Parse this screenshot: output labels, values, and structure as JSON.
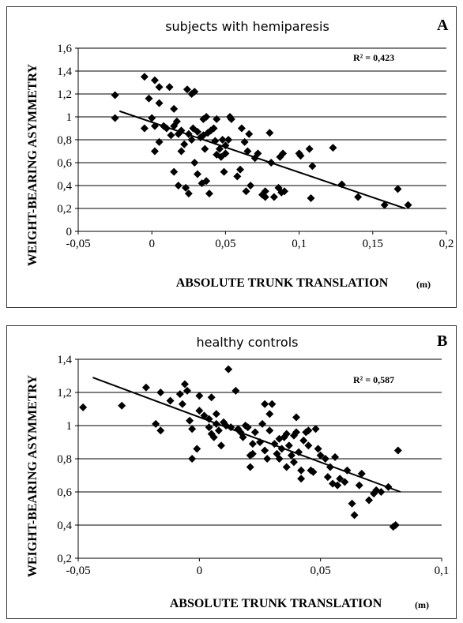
{
  "chart_data": [
    {
      "type": "scatter",
      "panel": "A",
      "title": "subjects with hemiparesis",
      "xlabel": "ABSOLUTE TRUNK TRANSLATION",
      "xunit": "(m)",
      "ylabel": "WEIGHT-BEARING ASYMMETRY",
      "xlim": [
        -0.05,
        0.2
      ],
      "ylim": [
        0,
        1.6
      ],
      "xticks": [
        "-0,05",
        "0",
        "0,05",
        "0,1",
        "0,15",
        "0,2"
      ],
      "yticks": [
        "0",
        "0,2",
        "0,4",
        "0,6",
        "0,8",
        "1",
        "1,2",
        "1,4",
        "1,6"
      ],
      "r2_label": "R² = 0,423",
      "grid": "horizontal",
      "trendline": {
        "x": [
          -0.022,
          0.172
        ],
        "y": [
          1.05,
          0.2
        ]
      },
      "points": [
        [
          -0.025,
          1.19
        ],
        [
          -0.025,
          0.99
        ],
        [
          -0.005,
          1.35
        ],
        [
          -0.005,
          0.9
        ],
        [
          -0.002,
          1.16
        ],
        [
          0.0,
          0.99
        ],
        [
          0.002,
          1.32
        ],
        [
          0.002,
          0.92
        ],
        [
          0.002,
          0.7
        ],
        [
          0.005,
          1.26
        ],
        [
          0.005,
          1.12
        ],
        [
          0.005,
          0.78
        ],
        [
          0.008,
          0.92
        ],
        [
          0.01,
          0.9
        ],
        [
          0.012,
          1.26
        ],
        [
          0.013,
          0.84
        ],
        [
          0.015,
          1.07
        ],
        [
          0.015,
          0.92
        ],
        [
          0.015,
          0.52
        ],
        [
          0.017,
          0.96
        ],
        [
          0.018,
          0.85
        ],
        [
          0.018,
          0.4
        ],
        [
          0.02,
          0.88
        ],
        [
          0.02,
          0.7
        ],
        [
          0.022,
          0.76
        ],
        [
          0.023,
          0.38
        ],
        [
          0.024,
          1.24
        ],
        [
          0.025,
          0.85
        ],
        [
          0.025,
          0.33
        ],
        [
          0.027,
          0.8
        ],
        [
          0.027,
          1.2
        ],
        [
          0.029,
          1.22
        ],
        [
          0.028,
          0.9
        ],
        [
          0.029,
          0.6
        ],
        [
          0.031,
          0.87
        ],
        [
          0.031,
          0.5
        ],
        [
          0.033,
          0.82
        ],
        [
          0.034,
          0.42
        ],
        [
          0.035,
          0.98
        ],
        [
          0.035,
          0.84
        ],
        [
          0.036,
          0.72
        ],
        [
          0.037,
          1.0
        ],
        [
          0.037,
          0.44
        ],
        [
          0.038,
          0.86
        ],
        [
          0.039,
          0.33
        ],
        [
          0.04,
          0.88
        ],
        [
          0.042,
          0.9
        ],
        [
          0.043,
          0.79
        ],
        [
          0.044,
          0.98
        ],
        [
          0.044,
          0.67
        ],
        [
          0.046,
          0.72
        ],
        [
          0.047,
          0.65
        ],
        [
          0.048,
          0.8
        ],
        [
          0.049,
          0.52
        ],
        [
          0.05,
          0.75
        ],
        [
          0.05,
          0.68
        ],
        [
          0.052,
          0.8
        ],
        [
          0.053,
          1.0
        ],
        [
          0.054,
          0.98
        ],
        [
          0.058,
          0.48
        ],
        [
          0.06,
          0.54
        ],
        [
          0.061,
          0.9
        ],
        [
          0.063,
          0.78
        ],
        [
          0.064,
          0.35
        ],
        [
          0.065,
          0.7
        ],
        [
          0.066,
          0.85
        ],
        [
          0.067,
          0.4
        ],
        [
          0.07,
          0.64
        ],
        [
          0.072,
          0.68
        ],
        [
          0.075,
          0.32
        ],
        [
          0.077,
          0.3
        ],
        [
          0.077,
          0.35
        ],
        [
          0.08,
          0.86
        ],
        [
          0.081,
          0.6
        ],
        [
          0.083,
          0.3
        ],
        [
          0.086,
          0.38
        ],
        [
          0.087,
          0.65
        ],
        [
          0.088,
          0.34
        ],
        [
          0.089,
          0.68
        ],
        [
          0.09,
          0.35
        ],
        [
          0.1,
          0.68
        ],
        [
          0.101,
          0.66
        ],
        [
          0.107,
          0.72
        ],
        [
          0.108,
          0.29
        ],
        [
          0.109,
          0.57
        ],
        [
          0.123,
          0.73
        ],
        [
          0.129,
          0.41
        ],
        [
          0.14,
          0.3
        ],
        [
          0.158,
          0.23
        ],
        [
          0.167,
          0.37
        ],
        [
          0.174,
          0.23
        ]
      ]
    },
    {
      "type": "scatter",
      "panel": "B",
      "title": "healthy controls",
      "xlabel": "ABSOLUTE TRUNK TRANSLATION",
      "xunit": "(m)",
      "ylabel": "WEIGHT-BEARING ASYMMETRY",
      "xlim": [
        -0.05,
        0.1
      ],
      "ylim": [
        0.2,
        1.4
      ],
      "xticks": [
        "-0,05",
        "0",
        "0,05",
        "0,1"
      ],
      "yticks": [
        "0,2",
        "0,4",
        "0,6",
        "0,8",
        "1",
        "1,2",
        "1,4"
      ],
      "r2_label": "R² = 0,587",
      "grid": "horizontal",
      "trendline": {
        "x": [
          -0.044,
          0.083
        ],
        "y": [
          1.29,
          0.6
        ]
      },
      "points": [
        [
          -0.048,
          1.11
        ],
        [
          -0.032,
          1.12
        ],
        [
          -0.022,
          1.23
        ],
        [
          -0.018,
          1.01
        ],
        [
          -0.016,
          1.2
        ],
        [
          -0.016,
          0.97
        ],
        [
          -0.012,
          1.15
        ],
        [
          -0.008,
          1.19
        ],
        [
          -0.007,
          1.13
        ],
        [
          -0.006,
          1.25
        ],
        [
          -0.005,
          1.21
        ],
        [
          -0.004,
          1.03
        ],
        [
          -0.003,
          0.98
        ],
        [
          -0.003,
          0.8
        ],
        [
          -0.001,
          0.86
        ],
        [
          0.0,
          1.18
        ],
        [
          0.0,
          1.09
        ],
        [
          0.002,
          1.06
        ],
        [
          0.004,
          1.04
        ],
        [
          0.004,
          0.99
        ],
        [
          0.005,
          0.95
        ],
        [
          0.005,
          1.17
        ],
        [
          0.006,
          0.93
        ],
        [
          0.007,
          1.07
        ],
        [
          0.007,
          1.01
        ],
        [
          0.008,
          0.97
        ],
        [
          0.009,
          0.88
        ],
        [
          0.01,
          1.02
        ],
        [
          0.011,
          1.0
        ],
        [
          0.012,
          1.34
        ],
        [
          0.013,
          0.99
        ],
        [
          0.015,
          1.21
        ],
        [
          0.016,
          0.98
        ],
        [
          0.017,
          0.96
        ],
        [
          0.018,
          0.93
        ],
        [
          0.019,
          1.0
        ],
        [
          0.02,
          0.99
        ],
        [
          0.021,
          0.82
        ],
        [
          0.021,
          0.75
        ],
        [
          0.022,
          0.83
        ],
        [
          0.022,
          0.89
        ],
        [
          0.023,
          0.96
        ],
        [
          0.025,
          0.9
        ],
        [
          0.026,
          1.01
        ],
        [
          0.027,
          0.85
        ],
        [
          0.027,
          1.13
        ],
        [
          0.028,
          0.8
        ],
        [
          0.029,
          1.07
        ],
        [
          0.029,
          0.97
        ],
        [
          0.03,
          1.13
        ],
        [
          0.031,
          0.89
        ],
        [
          0.032,
          0.83
        ],
        [
          0.033,
          0.92
        ],
        [
          0.033,
          0.8
        ],
        [
          0.034,
          0.86
        ],
        [
          0.035,
          0.93
        ],
        [
          0.036,
          0.75
        ],
        [
          0.036,
          0.95
        ],
        [
          0.037,
          0.88
        ],
        [
          0.038,
          0.82
        ],
        [
          0.039,
          0.78
        ],
        [
          0.039,
          0.94
        ],
        [
          0.04,
          1.05
        ],
        [
          0.04,
          0.96
        ],
        [
          0.041,
          0.84
        ],
        [
          0.042,
          0.73
        ],
        [
          0.042,
          0.68
        ],
        [
          0.043,
          0.91
        ],
        [
          0.044,
          0.96
        ],
        [
          0.045,
          0.88
        ],
        [
          0.045,
          0.97
        ],
        [
          0.046,
          0.73
        ],
        [
          0.047,
          0.72
        ],
        [
          0.048,
          0.98
        ],
        [
          0.049,
          0.86
        ],
        [
          0.05,
          0.82
        ],
        [
          0.052,
          0.8
        ],
        [
          0.053,
          0.69
        ],
        [
          0.054,
          0.75
        ],
        [
          0.055,
          0.65
        ],
        [
          0.056,
          0.81
        ],
        [
          0.057,
          0.64
        ],
        [
          0.058,
          0.68
        ],
        [
          0.06,
          0.66
        ],
        [
          0.061,
          0.73
        ],
        [
          0.063,
          0.53
        ],
        [
          0.064,
          0.46
        ],
        [
          0.066,
          0.64
        ],
        [
          0.067,
          0.71
        ],
        [
          0.07,
          0.55
        ],
        [
          0.072,
          0.59
        ],
        [
          0.073,
          0.61
        ],
        [
          0.075,
          0.6
        ],
        [
          0.078,
          0.63
        ],
        [
          0.08,
          0.39
        ],
        [
          0.081,
          0.4
        ],
        [
          0.082,
          0.85
        ]
      ]
    }
  ]
}
